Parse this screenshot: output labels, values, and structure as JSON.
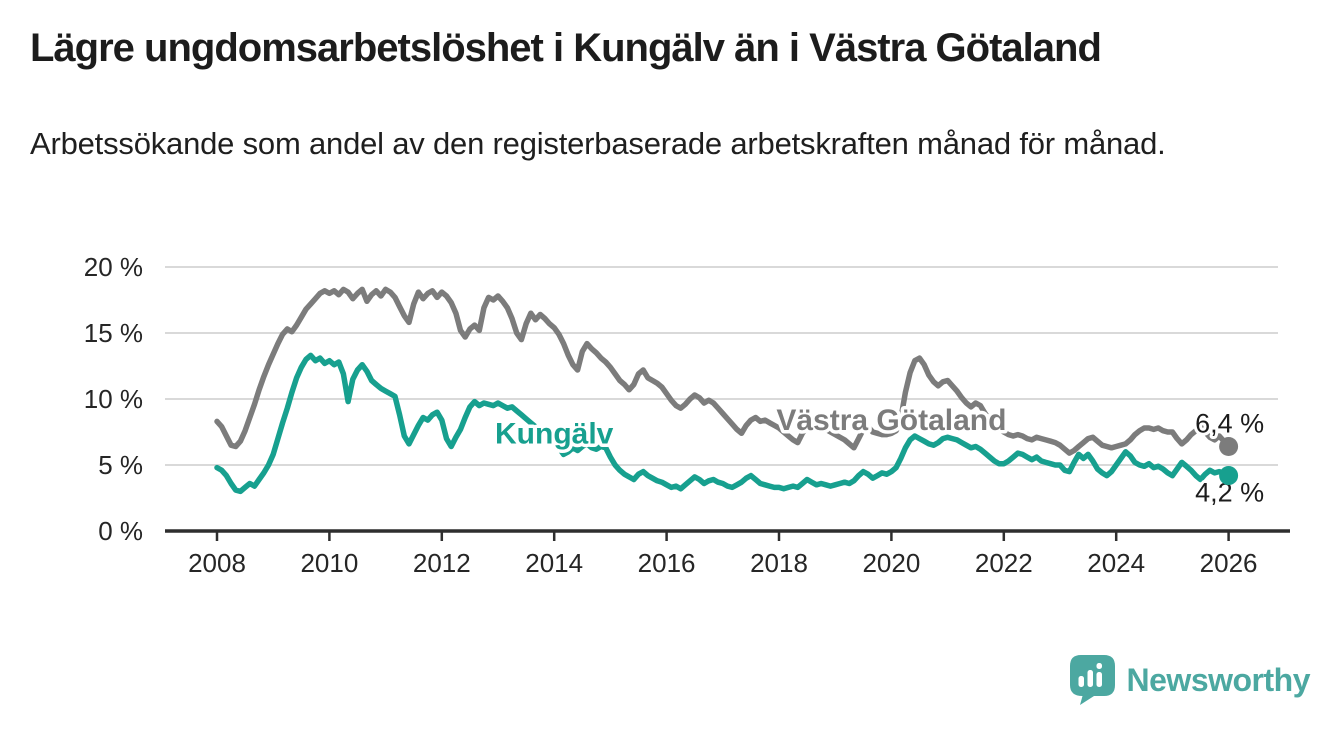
{
  "header": {
    "title": "Lägre ungdomsarbetslöshet i Kungälv än i Västra Götaland",
    "subtitle": "Arbetssökande som andel av den registerbaserade arbetskraften månad för månad."
  },
  "chart_data": {
    "type": "line",
    "title": "Lägre ungdomsarbetslöshet i Kungälv än i Västra Götaland",
    "x_start": "2008-01",
    "x_end": "2026-01",
    "freq": "monthly",
    "unit": "%",
    "ylim": [
      0,
      20
    ],
    "yticks": [
      0,
      5,
      10,
      15,
      20
    ],
    "ytick_labels": [
      "0 %",
      "5 %",
      "10 %",
      "15 %",
      "20 %"
    ],
    "xticks": [
      2008,
      2010,
      2012,
      2014,
      2016,
      2018,
      2020,
      2022,
      2024,
      2026
    ],
    "grid": "horizontal",
    "legend_position": "inline-labels",
    "series": [
      {
        "name": "Västra Götaland",
        "color": "#7c7c7c",
        "end_label": "6,4 %",
        "end_value": 6.4,
        "values": [
          8.3,
          7.9,
          7.2,
          6.5,
          6.4,
          6.8,
          7.6,
          8.6,
          9.6,
          10.7,
          11.7,
          12.6,
          13.4,
          14.2,
          14.9,
          15.3,
          15.1,
          15.6,
          16.2,
          16.8,
          17.2,
          17.6,
          18.0,
          18.2,
          18.0,
          18.2,
          17.9,
          18.3,
          18.1,
          17.6,
          18.0,
          18.3,
          17.4,
          17.9,
          18.2,
          17.8,
          18.3,
          18.1,
          17.7,
          17.0,
          16.3,
          15.8,
          17.2,
          18.1,
          17.6,
          18.0,
          18.2,
          17.7,
          18.1,
          17.8,
          17.3,
          16.5,
          15.2,
          14.7,
          15.3,
          15.6,
          15.2,
          16.9,
          17.7,
          17.5,
          17.8,
          17.4,
          16.9,
          16.1,
          15.0,
          14.5,
          15.7,
          16.5,
          16.0,
          16.4,
          16.1,
          15.7,
          15.4,
          14.9,
          14.2,
          13.3,
          12.6,
          12.2,
          13.6,
          14.2,
          13.8,
          13.5,
          13.1,
          12.8,
          12.4,
          11.9,
          11.4,
          11.1,
          10.7,
          11.1,
          11.9,
          12.2,
          11.6,
          11.4,
          11.2,
          10.9,
          10.4,
          9.9,
          9.5,
          9.3,
          9.6,
          10.0,
          10.3,
          10.1,
          9.7,
          9.9,
          9.7,
          9.3,
          8.9,
          8.5,
          8.1,
          7.7,
          7.4,
          8.0,
          8.4,
          8.6,
          8.3,
          8.4,
          8.2,
          8.0,
          7.8,
          7.5,
          7.2,
          6.9,
          6.7,
          7.4,
          7.9,
          8.1,
          7.8,
          7.9,
          7.7,
          7.5,
          7.3,
          7.1,
          6.9,
          6.6,
          6.3,
          7.0,
          7.7,
          7.9,
          7.5,
          7.4,
          7.3,
          7.3,
          7.4,
          7.6,
          8.5,
          10.5,
          12.0,
          12.9,
          13.1,
          12.6,
          11.8,
          11.3,
          11.0,
          11.3,
          11.4,
          11.0,
          10.6,
          10.1,
          9.7,
          9.4,
          9.7,
          9.5,
          8.9,
          8.4,
          7.9,
          7.7,
          7.5,
          7.3,
          7.2,
          7.3,
          7.2,
          7.0,
          6.9,
          7.1,
          7.0,
          6.9,
          6.8,
          6.7,
          6.5,
          6.2,
          5.9,
          6.1,
          6.4,
          6.7,
          7.0,
          7.1,
          6.8,
          6.5,
          6.4,
          6.3,
          6.4,
          6.5,
          6.6,
          6.9,
          7.3,
          7.6,
          7.8,
          7.8,
          7.7,
          7.8,
          7.6,
          7.5,
          7.5,
          7.0,
          6.6,
          6.9,
          7.3,
          7.6,
          7.9,
          7.5,
          7.1,
          6.9,
          7.2,
          6.8,
          6.4
        ]
      },
      {
        "name": "Kungälv",
        "color": "#17a08f",
        "end_label": "4,2 %",
        "end_value": 4.2,
        "values": [
          4.8,
          4.6,
          4.2,
          3.6,
          3.1,
          3.0,
          3.3,
          3.6,
          3.4,
          3.9,
          4.4,
          5.0,
          5.8,
          7.0,
          8.2,
          9.3,
          10.5,
          11.6,
          12.4,
          13.0,
          13.3,
          12.9,
          13.1,
          12.7,
          12.9,
          12.6,
          12.8,
          11.9,
          9.8,
          11.5,
          12.2,
          12.6,
          12.1,
          11.4,
          11.1,
          10.8,
          10.6,
          10.4,
          10.2,
          8.8,
          7.2,
          6.6,
          7.3,
          8.0,
          8.6,
          8.4,
          8.8,
          9.0,
          8.4,
          7.0,
          6.4,
          7.1,
          7.7,
          8.6,
          9.4,
          9.8,
          9.5,
          9.7,
          9.6,
          9.5,
          9.7,
          9.5,
          9.3,
          9.4,
          9.1,
          8.8,
          8.5,
          8.2,
          7.9,
          7.7,
          7.4,
          7.1,
          6.7,
          6.3,
          5.8,
          6.0,
          6.3,
          6.1,
          6.4,
          6.6,
          6.3,
          6.2,
          6.4,
          6.3,
          5.6,
          5.0,
          4.6,
          4.3,
          4.1,
          3.9,
          4.3,
          4.5,
          4.2,
          4.0,
          3.8,
          3.7,
          3.5,
          3.3,
          3.4,
          3.2,
          3.5,
          3.8,
          4.1,
          3.9,
          3.6,
          3.8,
          3.9,
          3.7,
          3.6,
          3.4,
          3.3,
          3.5,
          3.7,
          4.0,
          4.2,
          3.9,
          3.6,
          3.5,
          3.4,
          3.3,
          3.3,
          3.2,
          3.3,
          3.4,
          3.3,
          3.6,
          3.9,
          3.7,
          3.5,
          3.6,
          3.5,
          3.4,
          3.5,
          3.6,
          3.7,
          3.6,
          3.8,
          4.2,
          4.5,
          4.3,
          4.0,
          4.2,
          4.4,
          4.3,
          4.5,
          4.8,
          5.5,
          6.3,
          6.9,
          7.2,
          7.0,
          6.8,
          6.6,
          6.5,
          6.7,
          7.0,
          7.1,
          7.0,
          6.9,
          6.7,
          6.5,
          6.3,
          6.4,
          6.2,
          5.9,
          5.6,
          5.3,
          5.1,
          5.1,
          5.3,
          5.6,
          5.9,
          5.8,
          5.6,
          5.4,
          5.6,
          5.3,
          5.2,
          5.1,
          5.0,
          5.0,
          4.6,
          4.5,
          5.2,
          5.8,
          5.5,
          5.8,
          5.3,
          4.7,
          4.4,
          4.2,
          4.5,
          5.0,
          5.5,
          6.0,
          5.7,
          5.2,
          5.0,
          4.9,
          5.1,
          4.8,
          4.9,
          4.7,
          4.4,
          4.2,
          4.7,
          5.2,
          4.9,
          4.6,
          4.2,
          3.9,
          4.3,
          4.6,
          4.4,
          4.5,
          4.4,
          4.2
        ]
      }
    ],
    "series_labels": [
      {
        "text": "Västra Götaland",
        "color": "#7c7c7c",
        "year": 2020.0,
        "value": 8.4
      },
      {
        "text": "Kungälv",
        "color": "#17a08f",
        "year": 2014.0,
        "value": 7.4
      }
    ],
    "colors": {
      "grid": "#d9d9d9",
      "axis": "#2e2e2e",
      "tick_label": "#262626",
      "end_label": "#1c1c1c"
    }
  },
  "footer": {
    "brand": "Newsworthy",
    "brand_color": "#4ca8a1"
  }
}
